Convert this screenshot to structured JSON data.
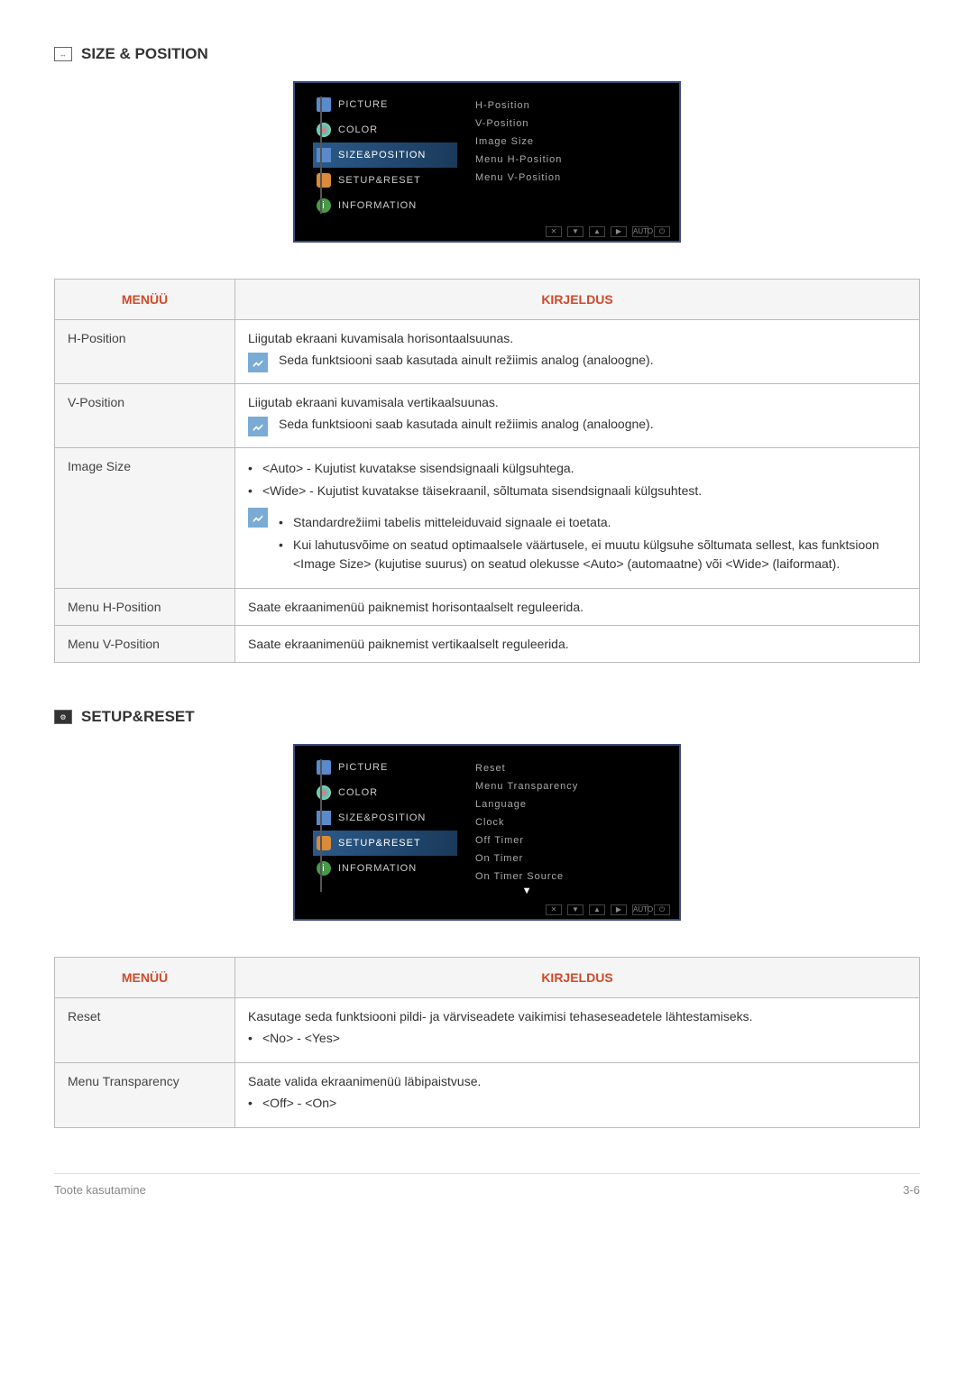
{
  "section1": {
    "title": "SIZE & POSITION",
    "icon_label": "↔",
    "menu_left": [
      {
        "label": "PICTURE",
        "icon_class": "icon-picture"
      },
      {
        "label": "COLOR",
        "icon_class": "icon-color"
      },
      {
        "label": "SIZE&POSITION",
        "icon_class": "icon-size",
        "active": true
      },
      {
        "label": "SETUP&RESET",
        "icon_class": "icon-setup"
      },
      {
        "label": "INFORMATION",
        "icon_class": "icon-info",
        "icon_text": "i"
      }
    ],
    "menu_right": [
      "H-Position",
      "V-Position",
      "Image Size",
      "Menu H-Position",
      "Menu V-Position"
    ],
    "menu_buttons": [
      "✕",
      "▼",
      "▲",
      "▶",
      "AUTO",
      "⏻"
    ]
  },
  "table1": {
    "headers": [
      "MENÜÜ",
      "KIRJELDUS"
    ],
    "rows": [
      {
        "menu": "H-Position",
        "desc_main": "Liigutab ekraani kuvamisala horisontaalsuunas.",
        "note": "Seda funktsiooni saab kasutada ainult režiimis analog (analoogne)."
      },
      {
        "menu": "V-Position",
        "desc_main": "Liigutab ekraani kuvamisala vertikaalsuunas.",
        "note": "Seda funktsiooni saab kasutada ainult režiimis analog (analoogne)."
      },
      {
        "menu": "Image Size",
        "bullets": [
          "<Auto> - Kujutist kuvatakse sisendsignaali külgsuhtega.",
          "<Wide> - Kujutist kuvatakse täisekraanil, sõltumata sisendsignaali külgsuhtest."
        ],
        "note_bullets": [
          "Standardrežiimi tabelis mitteleiduvaid signaale ei toetata.",
          "Kui lahutusvõime on seatud optimaalsele väärtusele, ei muutu külgsuhe sõltumata sellest, kas funktsioon <Image Size> (kujutise suurus) on seatud olekusse <Auto> (automaatne) või <Wide> (laiformaat)."
        ]
      },
      {
        "menu": "Menu H-Position",
        "desc_main": "Saate ekraanimenüü paiknemist horisontaalselt reguleerida."
      },
      {
        "menu": "Menu V-Position",
        "desc_main": "Saate ekraanimenüü paiknemist vertikaalselt reguleerida."
      }
    ]
  },
  "section2": {
    "title": "SETUP&RESET",
    "menu_left": [
      {
        "label": "PICTURE",
        "icon_class": "icon-picture"
      },
      {
        "label": "COLOR",
        "icon_class": "icon-color"
      },
      {
        "label": "SIZE&POSITION",
        "icon_class": "icon-size"
      },
      {
        "label": "SETUP&RESET",
        "icon_class": "icon-setup",
        "active": true
      },
      {
        "label": "INFORMATION",
        "icon_class": "icon-info",
        "icon_text": "i"
      }
    ],
    "menu_right": [
      "Reset",
      "Menu Transparency",
      "Language",
      "Clock",
      "Off Timer",
      "On Timer",
      "On Timer Source"
    ],
    "menu_buttons": [
      "✕",
      "▼",
      "▲",
      "▶",
      "AUTO",
      "⏻"
    ]
  },
  "table2": {
    "headers": [
      "MENÜÜ",
      "KIRJELDUS"
    ],
    "rows": [
      {
        "menu": "Reset",
        "desc_main": "Kasutage seda funktsiooni pildi- ja värviseadete vaikimisi tehaseseadetele lähtestamiseks.",
        "bullets": [
          "<No> - <Yes>"
        ]
      },
      {
        "menu": "Menu Transparency",
        "desc_main": "Saate valida ekraanimenüü läbipaistvuse.",
        "bullets": [
          "<Off> - <On>"
        ]
      }
    ]
  },
  "footer": {
    "left": "Toote kasutamine",
    "right": "3-6"
  }
}
